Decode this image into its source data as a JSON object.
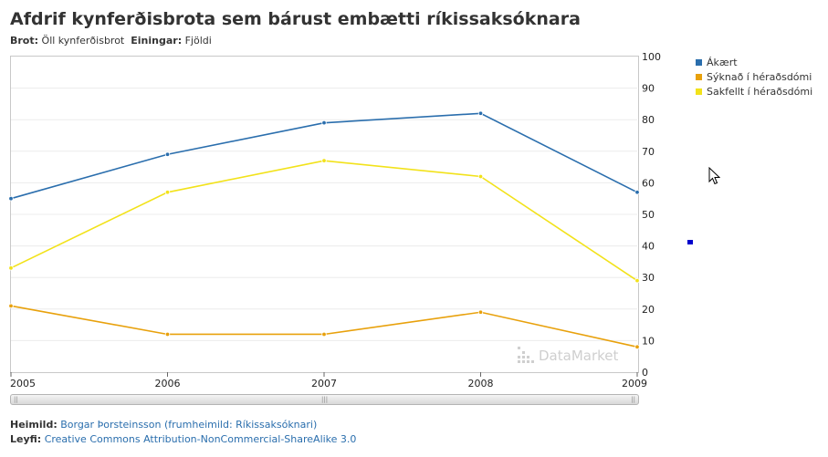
{
  "header": {
    "title": "Afdrif kynferðisbrota sem bárust embætti ríkissaksóknara",
    "brot_label": "Brot:",
    "brot_value": "Öll kynferðisbrot",
    "einingar_label": "Einingar:",
    "einingar_value": "Fjöldi"
  },
  "chart_data": {
    "type": "line",
    "x": [
      "2005",
      "2006",
      "2007",
      "2008",
      "2009"
    ],
    "series": [
      {
        "name": "Ákært",
        "color": "#2a6ead",
        "values": [
          55,
          69,
          79,
          82,
          57
        ]
      },
      {
        "name": "Sýknað í héraðsdómi",
        "color": "#e8a10c",
        "values": [
          21,
          12,
          12,
          19,
          8
        ]
      },
      {
        "name": "Sakfellt í héraðsdómi",
        "color": "#f2e21a",
        "values": [
          33,
          57,
          67,
          62,
          29
        ]
      }
    ],
    "ylim": [
      0,
      100
    ],
    "yticks": [
      "0",
      "10",
      "20",
      "30",
      "40",
      "50",
      "60",
      "70",
      "80",
      "90",
      "100"
    ],
    "grid": true,
    "legend_position": "right"
  },
  "watermark": "DataMarket",
  "footer": {
    "source_label": "Heimild:",
    "source_value": "Borgar Þorsteinsson (frumheimild: Ríkissaksóknari)",
    "license_label": "Leyfi:",
    "license_value": "Creative Commons Attribution-NonCommercial-ShareAlike 3.0"
  },
  "icons": {
    "cursor": "mouse-pointer-icon"
  }
}
